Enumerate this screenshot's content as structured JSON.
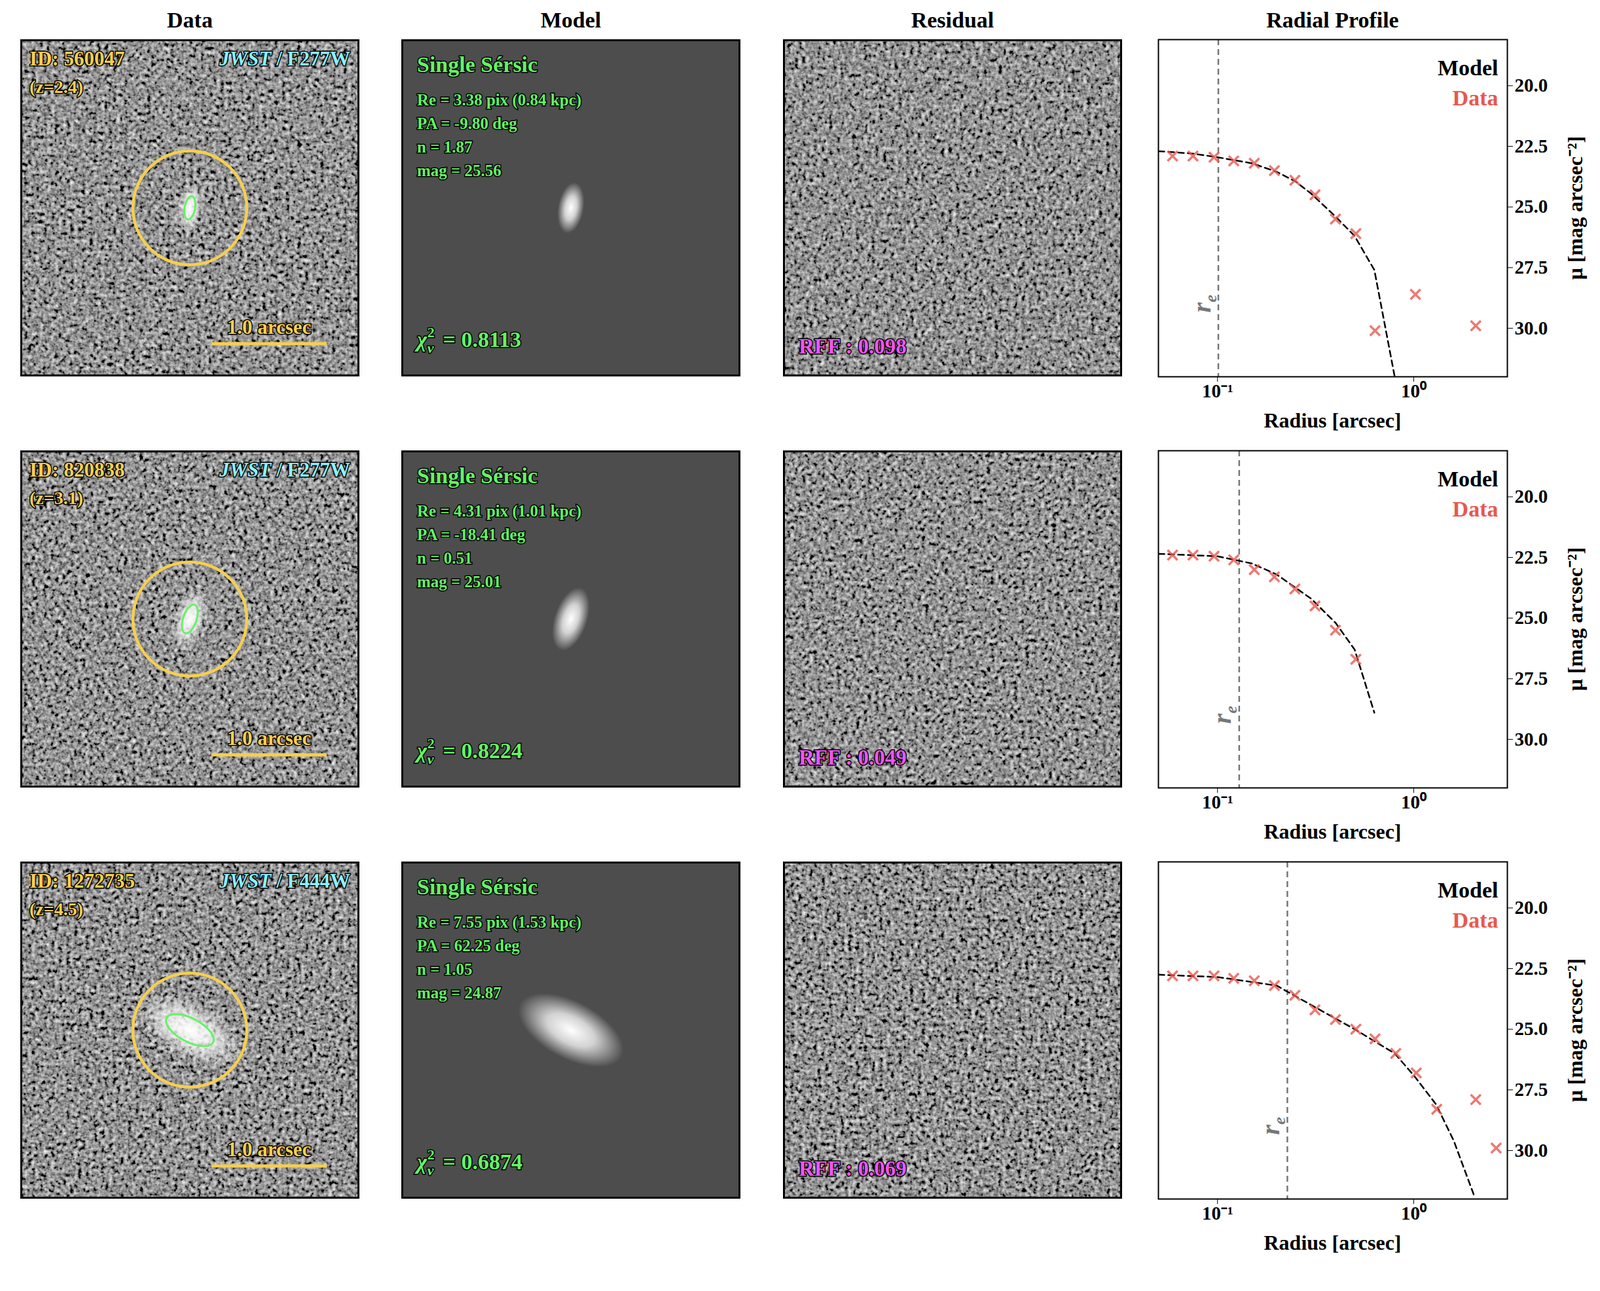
{
  "column_titles": [
    "Data",
    "Model",
    "Residual",
    "Radial Profile"
  ],
  "objects": [
    {
      "id": "ID: 560047",
      "z_label": "(z=2.4)",
      "telescope": "JWST",
      "filter_label": "/ F277W",
      "scale_bar": "1.0 arcsec",
      "model_name": "Single Sérsic",
      "fit_lines": [
        "Re = 3.38 pix (0.84 kpc)",
        "PA = -9.80 deg",
        "n = 1.87",
        "mag = 25.56"
      ],
      "re_pix": 3.38,
      "pa_deg": -9.8,
      "chi2": {
        "symbol": "χ",
        "sup": "2",
        "sub": "ν",
        "text": "= 0.8113"
      },
      "rff": "RFF : 0.098"
    },
    {
      "id": "ID: 820838",
      "z_label": "(z=3.1)",
      "telescope": "JWST",
      "filter_label": "/ F277W",
      "scale_bar": "1.0 arcsec",
      "model_name": "Single Sérsic",
      "fit_lines": [
        "Re = 4.31 pix (1.01 kpc)",
        "PA = -18.41 deg",
        "n = 0.51",
        "mag = 25.01"
      ],
      "re_pix": 4.31,
      "pa_deg": -18.41,
      "chi2": {
        "symbol": "χ",
        "sup": "2",
        "sub": "ν",
        "text": "= 0.8224"
      },
      "rff": "RFF : 0.049"
    },
    {
      "id": "ID: 1272735",
      "z_label": "(z=4.5)",
      "telescope": "JWST",
      "filter_label": "/ F444W",
      "scale_bar": "1.0 arcsec",
      "model_name": "Single Sérsic",
      "fit_lines": [
        "Re = 7.55 pix (1.53 kpc)",
        "PA = 62.25 deg",
        "n = 1.05",
        "mag = 24.87"
      ],
      "re_pix": 7.55,
      "pa_deg": 62.25,
      "chi2": {
        "symbol": "χ",
        "sup": "2",
        "sub": "ν",
        "text": "= 0.6874"
      },
      "rff": "RFF : 0.069"
    }
  ],
  "chart_data": [
    {
      "type": "line",
      "x_label": "Radius [arcsec]",
      "y_label": "μ [mag arcsec⁻²]",
      "log": "x",
      "xlim": [
        0.05,
        3.0
      ],
      "xticks": [
        {
          "value": 0.1,
          "label": "10⁻¹"
        },
        {
          "value": 1,
          "label": "10⁰"
        }
      ],
      "ylim": [
        32.0,
        18.1
      ],
      "yticks": [
        {
          "value": 20,
          "label": "20.0"
        },
        22.5,
        {
          "value": 25,
          "label": "25.0"
        },
        27.5,
        {
          "value": 30,
          "label": "30.0"
        }
      ],
      "legend": "upper right",
      "series": [
        {
          "name": "Model",
          "type": "line",
          "color": "#000000",
          "line_style": "dashed",
          "x": [
            0.05,
            0.075,
            0.1,
            0.15,
            0.2,
            0.25,
            0.3,
            0.4,
            0.5,
            0.63,
            0.8
          ],
          "values": [
            22.7,
            22.8,
            22.95,
            23.2,
            23.55,
            23.95,
            24.45,
            25.4,
            26.2,
            27.6,
            32.0
          ]
        },
        {
          "name": "Data",
          "type": "scatter",
          "color": "#e8584e",
          "marker": "x",
          "x": [
            0.059,
            0.075,
            0.096,
            0.121,
            0.154,
            0.195,
            0.248,
            0.314,
            0.399,
            0.507,
            0.635,
            1.02,
            2.07
          ],
          "values": [
            22.9,
            22.9,
            22.95,
            23.1,
            23.2,
            23.5,
            23.9,
            24.5,
            25.5,
            26.1,
            30.1,
            28.6,
            29.9
          ]
        }
      ],
      "annotations": [
        {
          "x": 0.101,
          "label": "r",
          "sub": "e",
          "line_style": "dashed",
          "color": "#777777"
        }
      ]
    },
    {
      "type": "line",
      "x_label": "Radius [arcsec]",
      "y_label": "μ [mag arcsec⁻²]",
      "log": "x",
      "xlim": [
        0.05,
        3.0
      ],
      "xticks": [
        {
          "value": 0.1,
          "label": "10⁻¹"
        },
        {
          "value": 1,
          "label": "10⁰"
        }
      ],
      "ylim": [
        32.0,
        18.1
      ],
      "yticks": [
        {
          "value": 20,
          "label": "20.0"
        },
        22.5,
        {
          "value": 25,
          "label": "25.0"
        },
        27.5,
        {
          "value": 30,
          "label": "30.0"
        }
      ],
      "legend": "upper right",
      "series": [
        {
          "name": "Model",
          "type": "line",
          "color": "#000000",
          "line_style": "dashed",
          "x": [
            0.05,
            0.1,
            0.15,
            0.2,
            0.3,
            0.4,
            0.5,
            0.63
          ],
          "values": [
            22.35,
            22.45,
            22.75,
            23.2,
            24.2,
            25.2,
            26.3,
            28.9
          ]
        },
        {
          "name": "Data",
          "type": "scatter",
          "color": "#e8584e",
          "marker": "x",
          "x": [
            0.059,
            0.075,
            0.096,
            0.121,
            0.154,
            0.195,
            0.248,
            0.314,
            0.399,
            0.507
          ],
          "values": [
            22.4,
            22.4,
            22.45,
            22.6,
            23.0,
            23.3,
            23.8,
            24.5,
            25.5,
            26.7
          ]
        }
      ],
      "annotations": [
        {
          "x": 0.129,
          "label": "r",
          "sub": "e",
          "line_style": "dashed",
          "color": "#777777"
        }
      ]
    },
    {
      "type": "line",
      "x_label": "Radius [arcsec]",
      "y_label": "μ [mag arcsec⁻²]",
      "log": "x",
      "xlim": [
        0.05,
        3.0
      ],
      "xticks": [
        {
          "value": 0.1,
          "label": "10⁻¹"
        },
        {
          "value": 1,
          "label": "10⁰"
        }
      ],
      "ylim": [
        32.0,
        18.1
      ],
      "yticks": [
        {
          "value": 20,
          "label": "20.0"
        },
        22.5,
        {
          "value": 25,
          "label": "25.0"
        },
        27.5,
        {
          "value": 30,
          "label": "30.0"
        }
      ],
      "legend": "upper right",
      "series": [
        {
          "name": "Model",
          "type": "line",
          "color": "#000000",
          "line_style": "dashed",
          "x": [
            0.05,
            0.1,
            0.2,
            0.3,
            0.5,
            0.8,
            1.0,
            1.3,
            1.6,
            2.04
          ],
          "values": [
            22.75,
            22.85,
            23.2,
            24.0,
            25.0,
            26.0,
            26.9,
            28.1,
            29.6,
            31.9
          ]
        },
        {
          "name": "Data",
          "type": "scatter",
          "color": "#e8584e",
          "marker": "x",
          "x": [
            0.059,
            0.075,
            0.096,
            0.121,
            0.154,
            0.195,
            0.248,
            0.314,
            0.399,
            0.507,
            0.635,
            0.81,
            1.03,
            1.31,
            2.07,
            2.63
          ],
          "values": [
            22.8,
            22.8,
            22.8,
            22.9,
            23.0,
            23.2,
            23.6,
            24.2,
            24.6,
            25.0,
            25.4,
            26.0,
            26.8,
            28.3,
            27.9,
            29.9
          ]
        }
      ],
      "annotations": [
        {
          "x": 0.227,
          "label": "r",
          "sub": "e",
          "line_style": "dashed",
          "color": "#777777"
        }
      ]
    }
  ]
}
